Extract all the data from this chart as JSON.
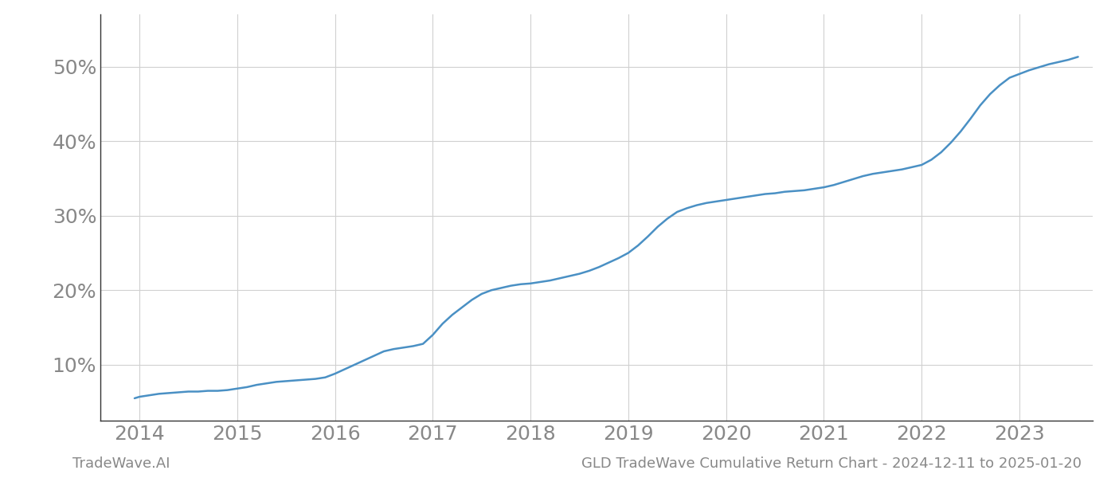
{
  "title": "GLD TradeWave Cumulative Return Chart - 2024-12-11 to 2025-01-20",
  "watermark": "TradeWave.AI",
  "line_color": "#4a90c4",
  "background_color": "#ffffff",
  "grid_color": "#d0d0d0",
  "x_years": [
    2014,
    2015,
    2016,
    2017,
    2018,
    2019,
    2020,
    2021,
    2022,
    2023
  ],
  "y_ticks": [
    0.1,
    0.2,
    0.3,
    0.4,
    0.5
  ],
  "xlim": [
    2013.6,
    2023.75
  ],
  "ylim": [
    0.025,
    0.57
  ],
  "data_x": [
    2013.95,
    2014.0,
    2014.1,
    2014.2,
    2014.3,
    2014.4,
    2014.5,
    2014.6,
    2014.7,
    2014.8,
    2014.9,
    2015.0,
    2015.1,
    2015.2,
    2015.3,
    2015.4,
    2015.5,
    2015.6,
    2015.7,
    2015.8,
    2015.9,
    2016.0,
    2016.1,
    2016.2,
    2016.3,
    2016.4,
    2016.5,
    2016.6,
    2016.7,
    2016.8,
    2016.9,
    2017.0,
    2017.1,
    2017.2,
    2017.3,
    2017.4,
    2017.5,
    2017.6,
    2017.7,
    2017.8,
    2017.9,
    2018.0,
    2018.1,
    2018.2,
    2018.3,
    2018.4,
    2018.5,
    2018.6,
    2018.7,
    2018.8,
    2018.9,
    2019.0,
    2019.1,
    2019.2,
    2019.3,
    2019.4,
    2019.5,
    2019.6,
    2019.7,
    2019.8,
    2019.9,
    2020.0,
    2020.1,
    2020.2,
    2020.3,
    2020.4,
    2020.5,
    2020.6,
    2020.7,
    2020.8,
    2020.9,
    2021.0,
    2021.1,
    2021.2,
    2021.3,
    2021.4,
    2021.5,
    2021.6,
    2021.7,
    2021.8,
    2021.9,
    2022.0,
    2022.1,
    2022.2,
    2022.3,
    2022.4,
    2022.5,
    2022.6,
    2022.7,
    2022.8,
    2022.9,
    2023.0,
    2023.1,
    2023.2,
    2023.3,
    2023.4,
    2023.5,
    2023.6
  ],
  "data_y": [
    0.055,
    0.057,
    0.059,
    0.061,
    0.062,
    0.063,
    0.064,
    0.064,
    0.065,
    0.065,
    0.066,
    0.068,
    0.07,
    0.073,
    0.075,
    0.077,
    0.078,
    0.079,
    0.08,
    0.081,
    0.083,
    0.088,
    0.094,
    0.1,
    0.106,
    0.112,
    0.118,
    0.121,
    0.123,
    0.125,
    0.128,
    0.14,
    0.155,
    0.167,
    0.177,
    0.187,
    0.195,
    0.2,
    0.203,
    0.206,
    0.208,
    0.209,
    0.211,
    0.213,
    0.216,
    0.219,
    0.222,
    0.226,
    0.231,
    0.237,
    0.243,
    0.25,
    0.26,
    0.272,
    0.285,
    0.296,
    0.305,
    0.31,
    0.314,
    0.317,
    0.319,
    0.321,
    0.323,
    0.325,
    0.327,
    0.329,
    0.33,
    0.332,
    0.333,
    0.334,
    0.336,
    0.338,
    0.341,
    0.345,
    0.349,
    0.353,
    0.356,
    0.358,
    0.36,
    0.362,
    0.365,
    0.368,
    0.375,
    0.385,
    0.398,
    0.413,
    0.43,
    0.448,
    0.463,
    0.475,
    0.485,
    0.49,
    0.495,
    0.499,
    0.503,
    0.506,
    0.509,
    0.513
  ],
  "title_fontsize": 13,
  "watermark_fontsize": 13,
  "tick_fontsize": 18,
  "tick_color": "#888888",
  "spine_color": "#333333",
  "left_spine_color": "#333333"
}
